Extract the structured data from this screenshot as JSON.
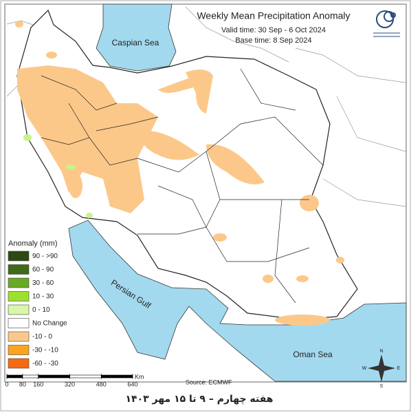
{
  "header": {
    "title": "Weekly Mean Precipitation Anomaly",
    "valid_time": "Valid time: 30 Sep - 6 Oct 2024",
    "base_time": "Base time: 8 Sep 2024"
  },
  "labels": {
    "caspian_sea": "Caspian Sea",
    "persian_gulf": "Persian Gulf",
    "oman_sea": "Oman Sea"
  },
  "legend": {
    "title": "Anomaly (mm)",
    "items": [
      {
        "label": "90 - >90",
        "color": "#2d4a14"
      },
      {
        "label": "60 - 90",
        "color": "#3d6b1a"
      },
      {
        "label": "30 - 60",
        "color": "#6aa825"
      },
      {
        "label": "10 - 30",
        "color": "#9be22e"
      },
      {
        "label": "0 - 10",
        "color": "#d8f7a8"
      },
      {
        "label": "No Change",
        "color": "#ffffff"
      },
      {
        "label": "-10 - 0",
        "color": "#fcc88a"
      },
      {
        "label": "-30 - -10",
        "color": "#fca31f"
      },
      {
        "label": "-60 - -30",
        "color": "#f56a12"
      }
    ]
  },
  "scale": {
    "ticks": [
      0,
      80,
      160,
      320,
      480,
      640
    ],
    "unit": "Km"
  },
  "source": "Source: ECMWF",
  "compass": {
    "n": "N",
    "s": "S",
    "e": "E",
    "w": "W"
  },
  "footer": "هفته چهارم – ۹ تا ۱۵ مهر ۱۴۰۳"
}
